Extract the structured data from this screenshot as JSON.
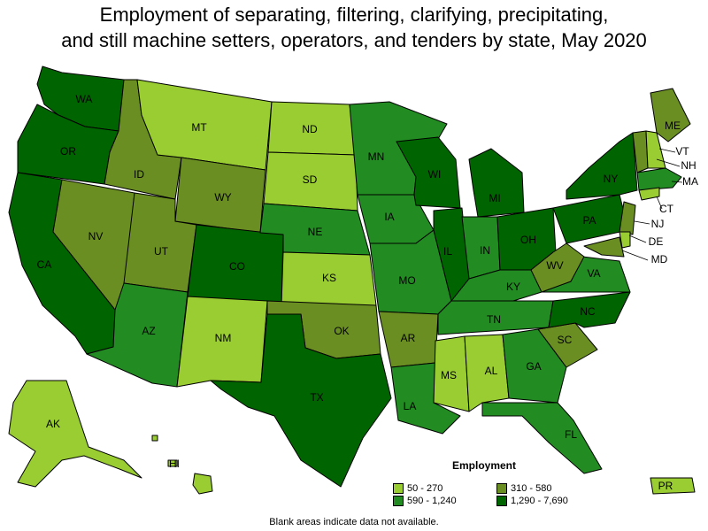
{
  "title_line1": "Employment of separating, filtering, clarifying, precipitating,",
  "title_line2": "and still machine setters, operators, and tenders by state, May 2020",
  "legend": {
    "title": "Employment",
    "items": [
      {
        "label": "50 - 270",
        "color": "#9acd32"
      },
      {
        "label": "590 - 1,240",
        "color": "#228b22"
      },
      {
        "label": "310 - 580",
        "color": "#6b8e23"
      },
      {
        "label": "1,290 - 7,690",
        "color": "#006400"
      }
    ]
  },
  "footnote": "Blank areas indicate data not available.",
  "states": [
    {
      "abbr": "WA",
      "tier": 3
    },
    {
      "abbr": "OR",
      "tier": 3
    },
    {
      "abbr": "CA",
      "tier": 3
    },
    {
      "abbr": "ID",
      "tier": 2
    },
    {
      "abbr": "NV",
      "tier": 2
    },
    {
      "abbr": "UT",
      "tier": 2
    },
    {
      "abbr": "AZ",
      "tier": 1
    },
    {
      "abbr": "MT",
      "tier": 0
    },
    {
      "abbr": "WY",
      "tier": 2
    },
    {
      "abbr": "CO",
      "tier": 3
    },
    {
      "abbr": "NM",
      "tier": 0
    },
    {
      "abbr": "ND",
      "tier": 0
    },
    {
      "abbr": "SD",
      "tier": 0
    },
    {
      "abbr": "NE",
      "tier": 1
    },
    {
      "abbr": "KS",
      "tier": 0
    },
    {
      "abbr": "OK",
      "tier": 2
    },
    {
      "abbr": "TX",
      "tier": 3
    },
    {
      "abbr": "MN",
      "tier": 1
    },
    {
      "abbr": "IA",
      "tier": 1
    },
    {
      "abbr": "MO",
      "tier": 1
    },
    {
      "abbr": "AR",
      "tier": 2
    },
    {
      "abbr": "LA",
      "tier": 1
    },
    {
      "abbr": "WI",
      "tier": 3
    },
    {
      "abbr": "IL",
      "tier": 3
    },
    {
      "abbr": "MI",
      "tier": 3
    },
    {
      "abbr": "IN",
      "tier": 1
    },
    {
      "abbr": "OH",
      "tier": 3
    },
    {
      "abbr": "KY",
      "tier": 1
    },
    {
      "abbr": "TN",
      "tier": 1
    },
    {
      "abbr": "MS",
      "tier": 0
    },
    {
      "abbr": "AL",
      "tier": 0
    },
    {
      "abbr": "GA",
      "tier": 1
    },
    {
      "abbr": "FL",
      "tier": 1
    },
    {
      "abbr": "SC",
      "tier": 2
    },
    {
      "abbr": "NC",
      "tier": 3
    },
    {
      "abbr": "VA",
      "tier": 1
    },
    {
      "abbr": "WV",
      "tier": 2
    },
    {
      "abbr": "PA",
      "tier": 3
    },
    {
      "abbr": "NY",
      "tier": 3
    },
    {
      "abbr": "ME",
      "tier": 2
    },
    {
      "abbr": "VT",
      "tier": 2
    },
    {
      "abbr": "NH",
      "tier": 0
    },
    {
      "abbr": "MA",
      "tier": 1
    },
    {
      "abbr": "CT",
      "tier": 0
    },
    {
      "abbr": "NJ",
      "tier": 2
    },
    {
      "abbr": "DE",
      "tier": 0
    },
    {
      "abbr": "MD",
      "tier": 2
    },
    {
      "abbr": "AK",
      "tier": 0
    },
    {
      "abbr": "HI",
      "tier": 0
    },
    {
      "abbr": "PR",
      "tier": 0
    }
  ]
}
